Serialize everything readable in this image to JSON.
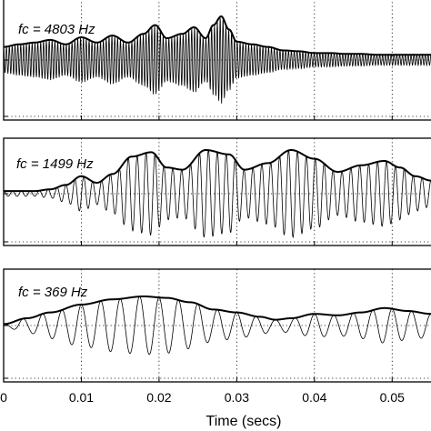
{
  "chart_data": [
    {
      "type": "line",
      "annotation": "fc = 4803 Hz",
      "carrier_freq_hz": 4803,
      "series": [
        {
          "role": "carrier",
          "style": "thin"
        },
        {
          "role": "envelope",
          "style": "thick",
          "t": [
            0,
            0.002,
            0.004,
            0.006,
            0.008,
            0.01,
            0.012,
            0.014,
            0.016,
            0.018,
            0.0195,
            0.021,
            0.023,
            0.0245,
            0.026,
            0.027,
            0.028,
            0.029,
            0.03,
            0.032,
            0.034,
            0.036,
            0.038,
            0.04,
            0.042,
            0.044,
            0.046,
            0.048,
            0.05,
            0.052,
            0.055
          ],
          "amp": [
            0.3,
            0.36,
            0.4,
            0.46,
            0.36,
            0.52,
            0.4,
            0.56,
            0.4,
            0.6,
            0.8,
            0.5,
            0.6,
            0.75,
            0.5,
            0.8,
            1.0,
            0.7,
            0.42,
            0.36,
            0.3,
            0.22,
            0.2,
            0.16,
            0.16,
            0.14,
            0.14,
            0.12,
            0.12,
            0.12,
            0.12
          ]
        }
      ]
    },
    {
      "type": "line",
      "annotation": "fc = 1499 Hz",
      "carrier_freq_hz": 1499,
      "series": [
        {
          "role": "carrier",
          "style": "thin"
        },
        {
          "role": "envelope",
          "style": "thick",
          "t": [
            0,
            0.004,
            0.006,
            0.008,
            0.01,
            0.012,
            0.014,
            0.0165,
            0.019,
            0.021,
            0.023,
            0.026,
            0.029,
            0.031,
            0.034,
            0.037,
            0.04,
            0.043,
            0.046,
            0.049,
            0.051,
            0.053,
            0.055
          ],
          "amp": [
            0.06,
            0.06,
            0.1,
            0.2,
            0.4,
            0.25,
            0.45,
            0.85,
            0.95,
            0.6,
            0.55,
            1.0,
            0.9,
            0.55,
            0.7,
            1.0,
            0.8,
            0.5,
            0.65,
            0.75,
            0.6,
            0.4,
            0.3
          ]
        }
      ]
    },
    {
      "type": "line",
      "annotation": "fc = 369 Hz",
      "carrier_freq_hz": 369,
      "xlabel": "Time (secs)",
      "xlim": [
        0,
        0.055
      ],
      "xticks": [
        0,
        0.01,
        0.02,
        0.03,
        0.04,
        0.05
      ],
      "xtick_labels": [
        "0",
        "0.01",
        "0.02",
        "0.03",
        "0.04",
        "0.05"
      ],
      "series": [
        {
          "role": "carrier",
          "style": "thin"
        },
        {
          "role": "envelope",
          "style": "thick",
          "t": [
            0,
            0.003,
            0.006,
            0.01,
            0.014,
            0.018,
            0.021,
            0.024,
            0.027,
            0.03,
            0.033,
            0.035,
            0.037,
            0.04,
            0.043,
            0.046,
            0.049,
            0.052,
            0.055
          ],
          "amp": [
            0.05,
            0.25,
            0.45,
            0.72,
            0.9,
            1.0,
            0.95,
            0.8,
            0.55,
            0.45,
            0.3,
            0.2,
            0.25,
            0.4,
            0.35,
            0.45,
            0.6,
            0.5,
            0.4
          ]
        }
      ]
    }
  ]
}
